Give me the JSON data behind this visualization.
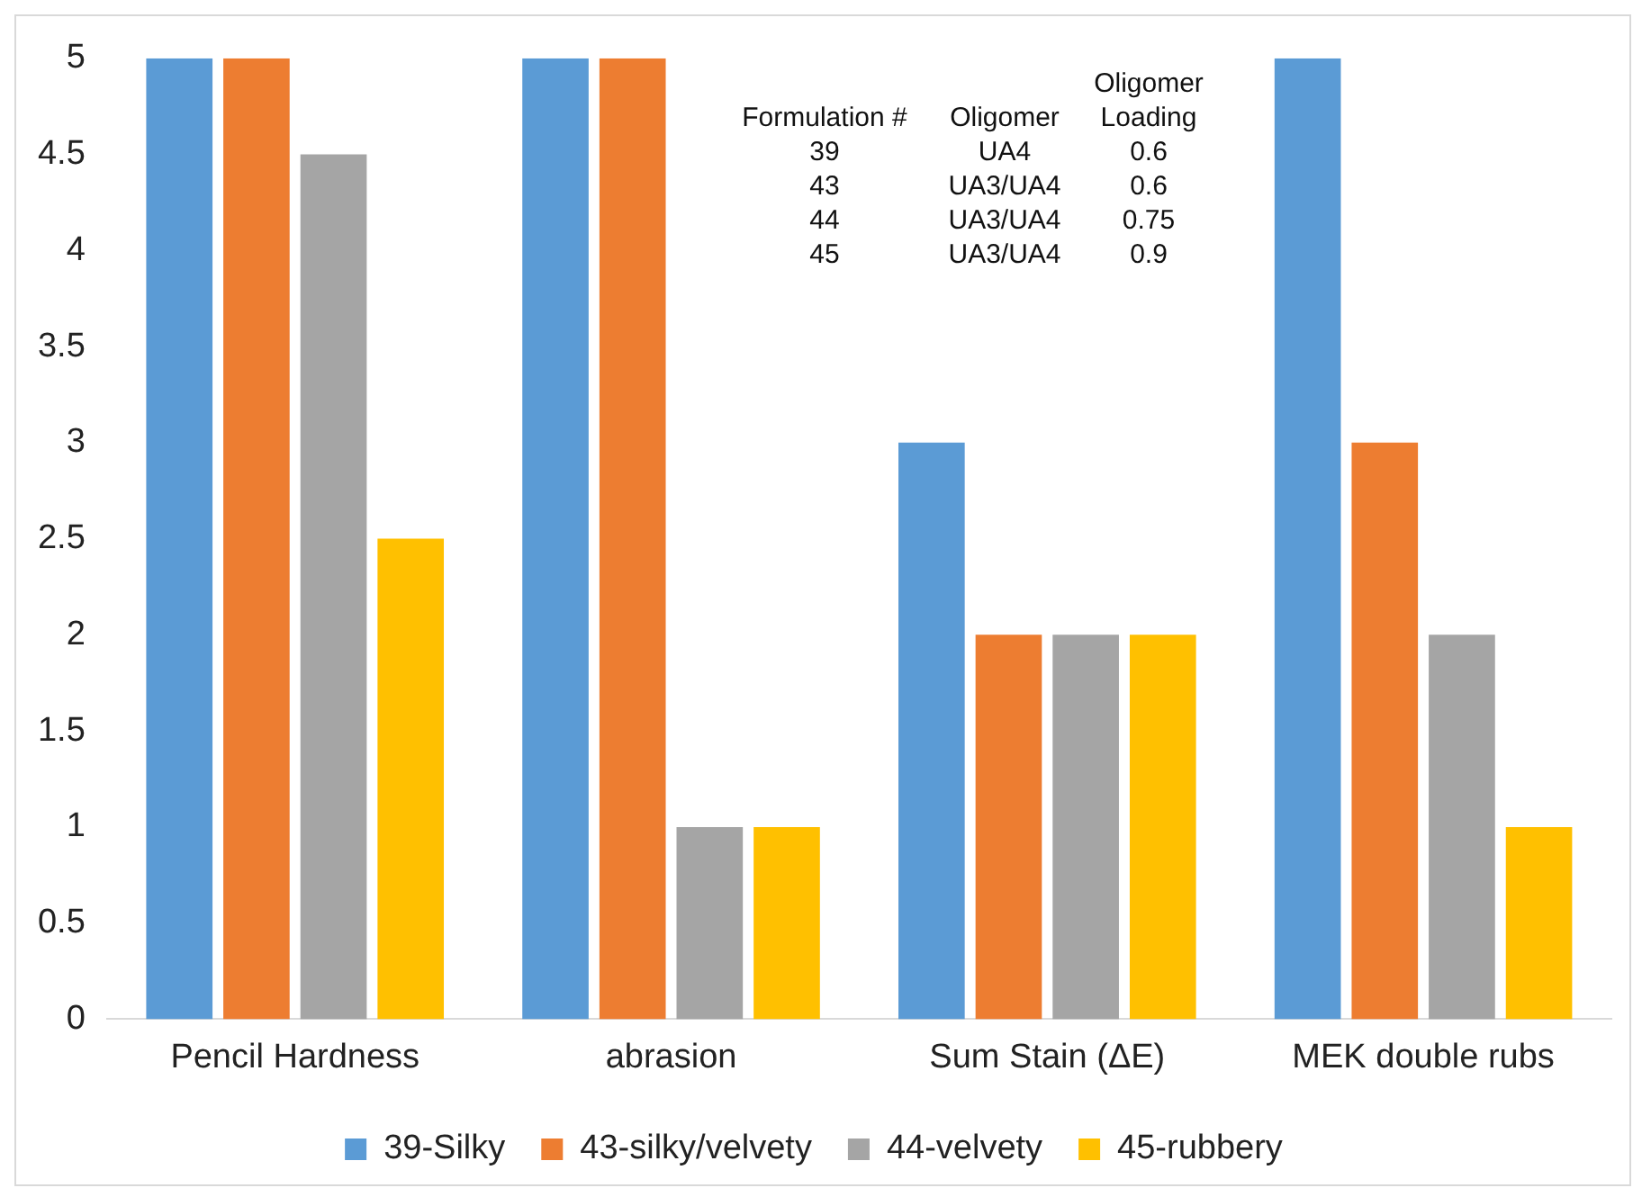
{
  "chart_data": {
    "type": "bar",
    "categories": [
      "Pencil Hardness",
      "abrasion",
      "Sum Stain (ΔE)",
      "MEK double rubs"
    ],
    "series": [
      {
        "name": "39-Silky",
        "color": "#5b9bd5",
        "values": [
          5,
          5,
          3,
          5
        ]
      },
      {
        "name": "43-silky/velvety",
        "color": "#ed7d31",
        "values": [
          5,
          5,
          2,
          3
        ]
      },
      {
        "name": "44-velvety",
        "color": "#a5a5a5",
        "values": [
          4.5,
          1,
          2,
          2
        ]
      },
      {
        "name": "45-rubbery",
        "color": "#ffc000",
        "values": [
          2.5,
          1,
          2,
          1
        ]
      }
    ],
    "ylim": [
      0,
      5
    ],
    "yticks": [
      0,
      0.5,
      1,
      1.5,
      2,
      2.5,
      3,
      3.5,
      4,
      4.5,
      5
    ],
    "grid": false,
    "legend": "bottom",
    "annotations": [
      "Formulation #",
      "Oligomer",
      "Oligomer Loading",
      "39",
      "UA4",
      "0.6",
      "43",
      "UA3/UA4",
      "0.6",
      "44",
      "UA3/UA4",
      "0.75",
      "45",
      "UA3/UA4",
      "0.9"
    ]
  }
}
